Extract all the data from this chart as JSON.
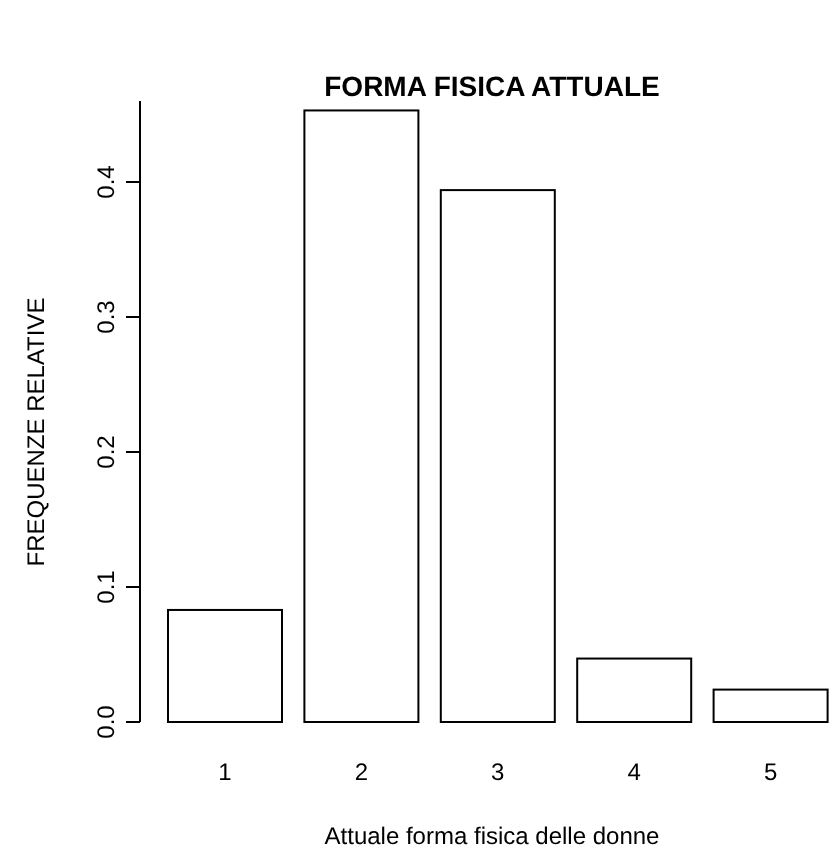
{
  "chart_data": {
    "type": "bar",
    "title": "FORMA FISICA ATTUALE",
    "xlabel": "Attuale forma fisica delle donne",
    "ylabel": "FREQUENZE RELATIVE",
    "categories": [
      "1",
      "2",
      "3",
      "4",
      "5"
    ],
    "values": [
      0.083,
      0.453,
      0.394,
      0.047,
      0.024
    ],
    "color": "#ffffff",
    "ylim": [
      0,
      0.46
    ],
    "yticks": [
      {
        "value": 0,
        "label": "0.0"
      },
      {
        "value": 0.1,
        "label": "0.1"
      },
      {
        "value": 0.2,
        "label": "0.2"
      },
      {
        "value": 0.3,
        "label": "0.3"
      },
      {
        "value": 0.4,
        "label": "0.4"
      }
    ],
    "grid": false
  }
}
